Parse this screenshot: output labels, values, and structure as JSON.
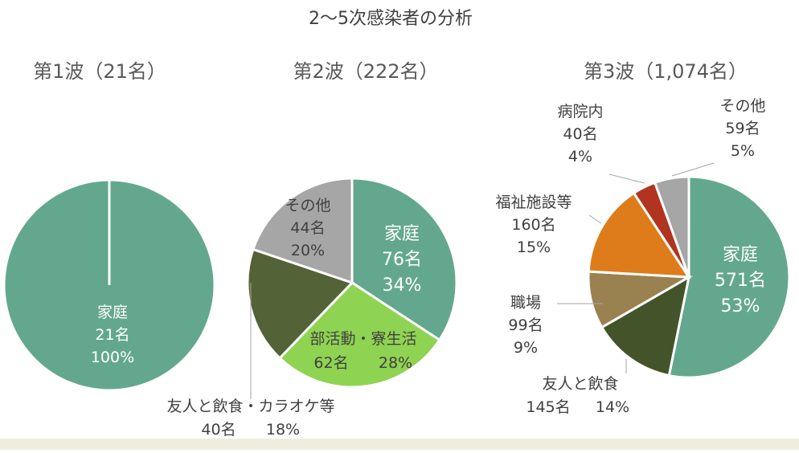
{
  "chart_data": {
    "title": "2～5次感染者の分析",
    "type": "pie",
    "charts": [
      {
        "title": "第1波（21名）",
        "slices": [
          {
            "label": "家庭",
            "count": "21名",
            "percent": "100%",
            "value": 21,
            "color": "#63a88e"
          }
        ]
      },
      {
        "title": "第2波（222名）",
        "slices": [
          {
            "label": "家庭",
            "count": "76名",
            "percent": "34%",
            "value": 76,
            "color": "#63a88e"
          },
          {
            "label": "部活動・寮生活",
            "count": "62名",
            "percent": "28%",
            "value": 62,
            "color": "#8fd352"
          },
          {
            "label": "友人と飲食・カラオケ等",
            "count": "40名",
            "percent": "18%",
            "value": 40,
            "color": "#536237"
          },
          {
            "label": "その他",
            "count": "44名",
            "percent": "20%",
            "value": 44,
            "color": "#a6a6a6"
          }
        ]
      },
      {
        "title": "第3波（1,074名）",
        "slices": [
          {
            "label": "家庭",
            "count": "571名",
            "percent": "53%",
            "value": 571,
            "color": "#63a88e"
          },
          {
            "label": "友人と飲食",
            "count": "145名",
            "percent": "14%",
            "value": 145,
            "color": "#44542a"
          },
          {
            "label": "職場",
            "count": "99名",
            "percent": "9%",
            "value": 99,
            "color": "#9a8150"
          },
          {
            "label": "福祉施設等",
            "count": "160名",
            "percent": "15%",
            "value": 160,
            "color": "#de7c1b"
          },
          {
            "label": "病院内",
            "count": "40名",
            "percent": "4%",
            "value": 40,
            "color": "#b0341f"
          },
          {
            "label": "その他",
            "count": "59名",
            "percent": "5%",
            "value": 59,
            "color": "#a6a6a6"
          }
        ]
      }
    ]
  }
}
